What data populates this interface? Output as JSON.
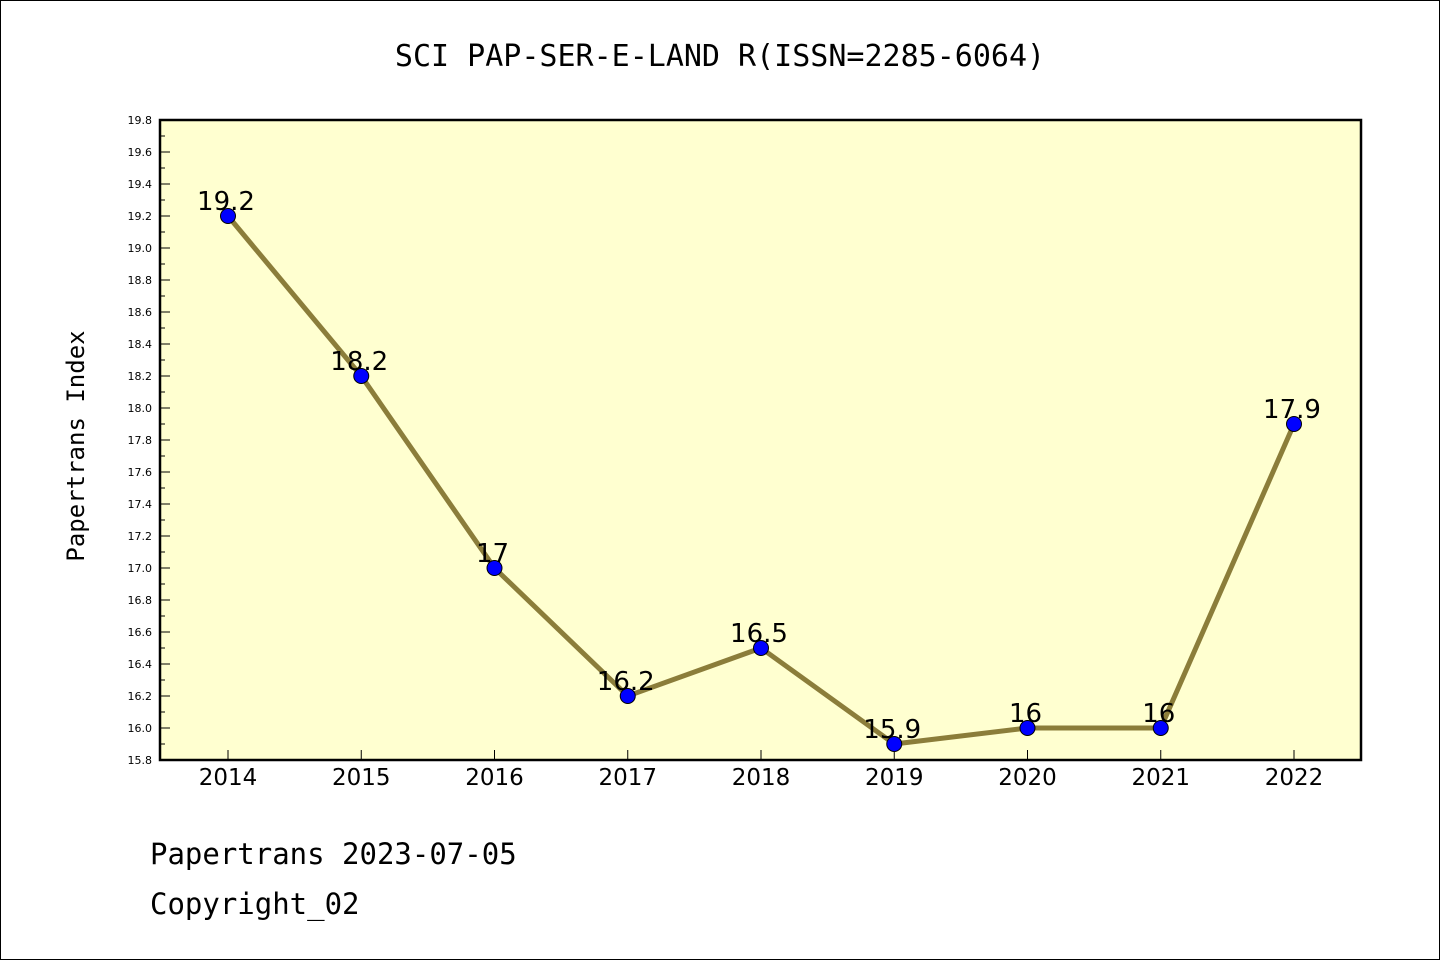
{
  "chart_data": {
    "type": "line",
    "title": "SCI PAP-SER-E-LAND R(ISSN=2285-6064)",
    "xlabel": "",
    "ylabel": "Papertrans Index",
    "categories": [
      "2014",
      "2015",
      "2016",
      "2017",
      "2018",
      "2019",
      "2020",
      "2021",
      "2022"
    ],
    "values": [
      19.2,
      18.2,
      17,
      16.2,
      16.5,
      15.9,
      16,
      16,
      17.9
    ],
    "data_labels": [
      "19.2",
      "18.2",
      "17",
      "16.2",
      "16.5",
      "15.9",
      "16",
      "16",
      "17.9"
    ],
    "ylim": [
      15.8,
      19.8
    ],
    "y_major_step": 0.2,
    "y_tick_labels": [
      "15.8",
      "16.0",
      "16.2",
      "16.4",
      "16.6",
      "16.8",
      "17.0",
      "17.2",
      "17.4",
      "17.6",
      "17.8",
      "18.0",
      "18.2",
      "18.4",
      "18.6",
      "18.8",
      "19.0",
      "19.2",
      "19.4",
      "19.6",
      "19.8"
    ],
    "grid": false,
    "colors": {
      "line": "#8b7d3a",
      "marker": "#0000ff",
      "plot_background": "#ffffd0"
    }
  },
  "footer": {
    "line1": "Papertrans 2023-07-05",
    "line2": "Copyright_02"
  }
}
